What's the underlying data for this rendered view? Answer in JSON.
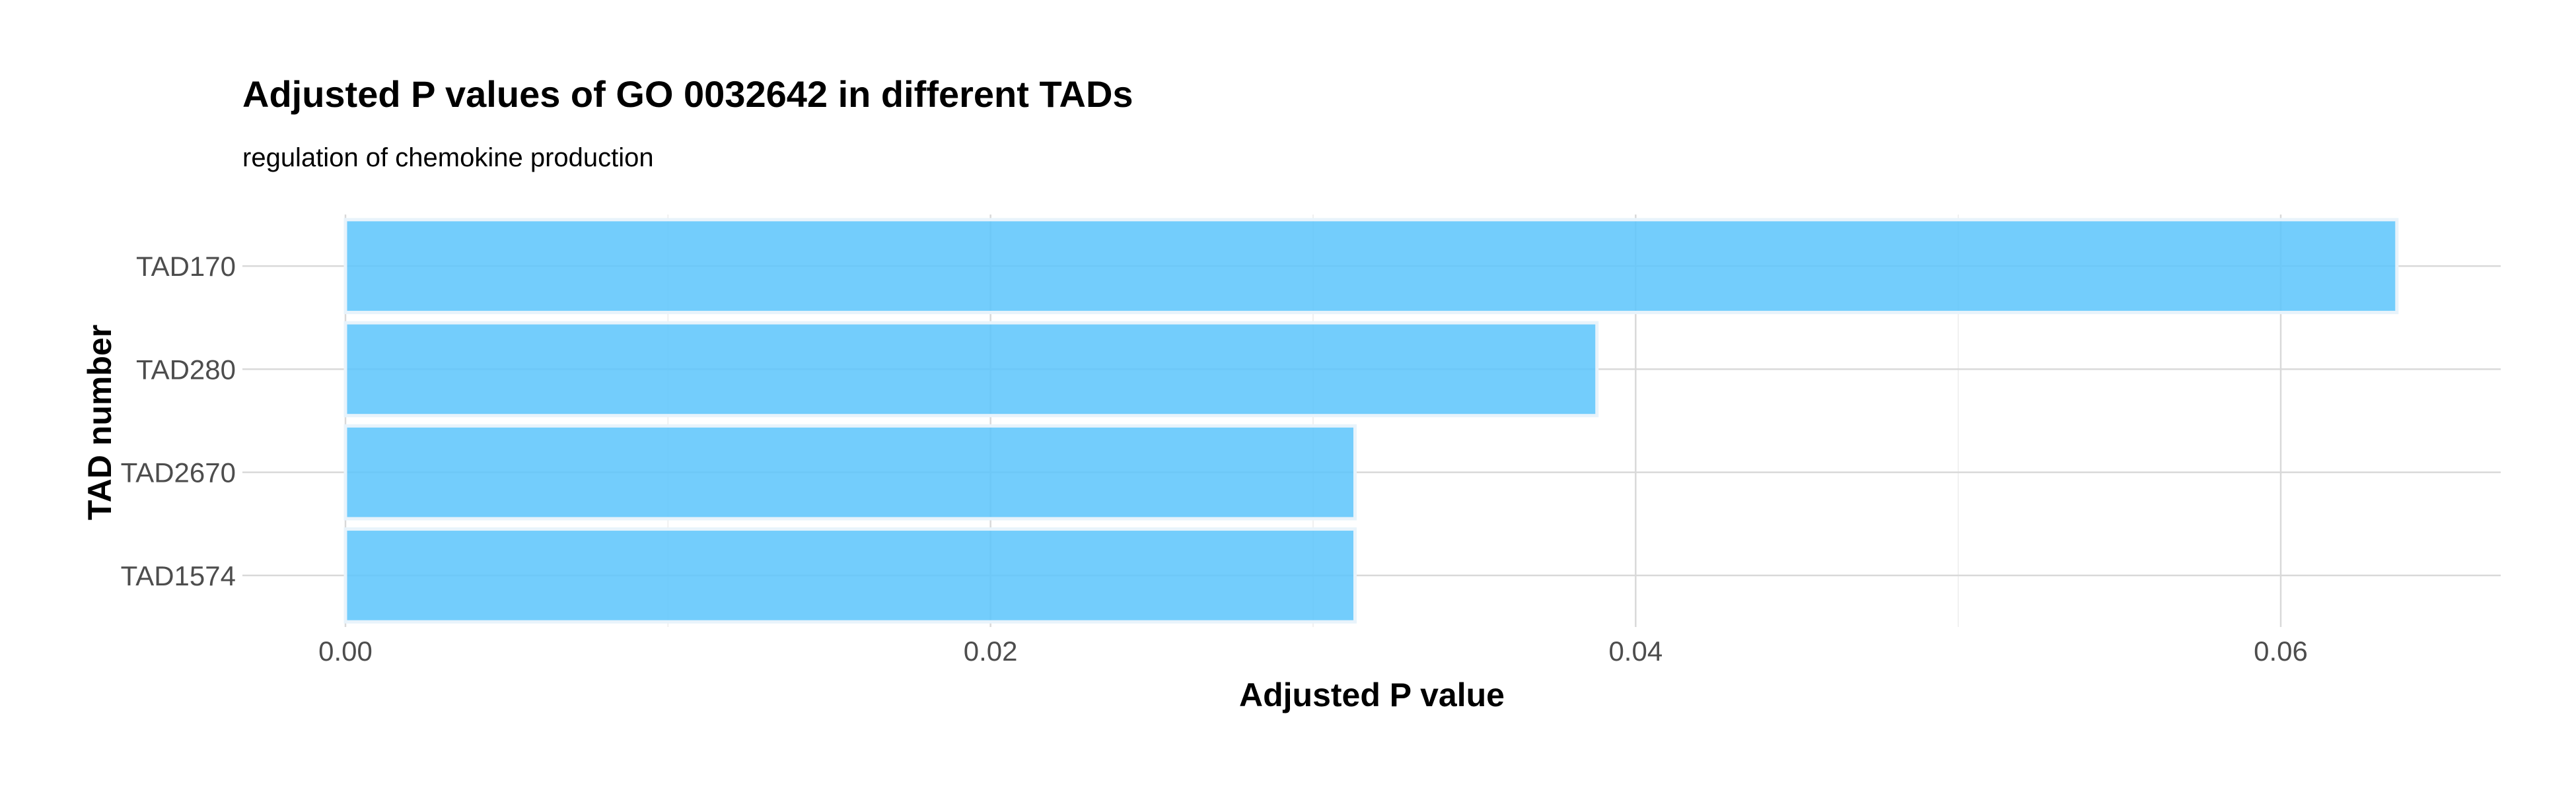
{
  "chart_data": {
    "type": "bar",
    "orientation": "horizontal",
    "title": "Adjusted P values of GO 0032642 in different TADs",
    "subtitle": "regulation of chemokine production",
    "xlabel": "Adjusted P value",
    "ylabel": "TAD number",
    "categories": [
      "TAD170",
      "TAD280",
      "TAD2670",
      "TAD1574"
    ],
    "values": [
      0.0636,
      0.0388,
      0.0313,
      0.0313
    ],
    "xlim": [
      0,
      0.067
    ],
    "x_ticks": [
      0.0,
      0.02,
      0.04,
      0.06
    ],
    "x_tick_labels": [
      "0.00",
      "0.02",
      "0.04",
      "0.06"
    ],
    "grid": true,
    "legend": "none",
    "bar_color": "#5bc4fb",
    "bar_outline_color": "#e8f3fb"
  }
}
